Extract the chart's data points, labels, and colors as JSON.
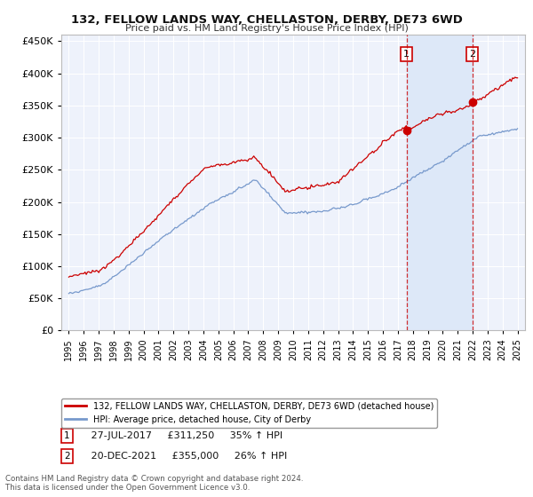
{
  "title": "132, FELLOW LANDS WAY, CHELLASTON, DERBY, DE73 6WD",
  "subtitle": "Price paid vs. HM Land Registry's House Price Index (HPI)",
  "background_color": "#ffffff",
  "plot_bg_color": "#eef2fb",
  "grid_color": "#ffffff",
  "red_line_color": "#cc0000",
  "blue_line_color": "#7799cc",
  "shade_color": "#dde8f8",
  "marker1_x": 2017.58,
  "marker2_x": 2021.97,
  "marker1_price": 311250,
  "marker2_price": 355000,
  "legend1": "132, FELLOW LANDS WAY, CHELLASTON, DERBY, DE73 6WD (detached house)",
  "legend2": "HPI: Average price, detached house, City of Derby",
  "footnote": "Contains HM Land Registry data © Crown copyright and database right 2024.\nThis data is licensed under the Open Government Licence v3.0.",
  "ylim_min": 0,
  "ylim_max": 460000,
  "xlim_min": 1994.5,
  "xlim_max": 2025.5,
  "row1_num": "1",
  "row1_date": "27-JUL-2017",
  "row1_price": "£311,250",
  "row1_pct": "35% ↑ HPI",
  "row2_num": "2",
  "row2_date": "20-DEC-2021",
  "row2_price": "£355,000",
  "row2_pct": "26% ↑ HPI"
}
